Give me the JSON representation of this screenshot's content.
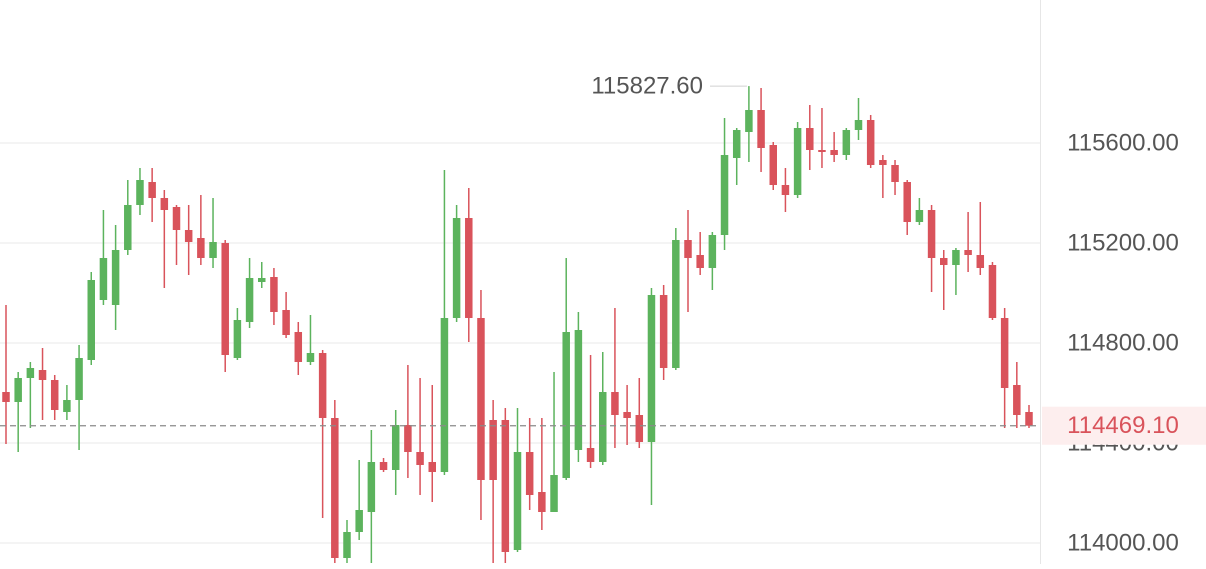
{
  "chart_data": {
    "type": "candlestick",
    "up_color": "#5cb35d",
    "down_color": "#d9535b",
    "ylim": [
      113916,
      116172
    ],
    "yticks": [
      {
        "value": 114000,
        "label": "114000.00"
      },
      {
        "value": 114400,
        "label": "114400.00"
      },
      {
        "value": 114800,
        "label": "114800.00"
      },
      {
        "value": 115200,
        "label": "115200.00"
      },
      {
        "value": 115600,
        "label": "115600.00"
      }
    ],
    "grid": true,
    "max_marker": {
      "value": 115827.6,
      "label": "115827.60"
    },
    "current_price": {
      "value": 114469.1,
      "label": "114469.10"
    },
    "open": [
      114604,
      114564,
      114660,
      114692,
      114652,
      114524,
      114572,
      114732,
      114972,
      114952,
      115172,
      115352,
      115444,
      115380,
      115344,
      115252,
      115220,
      115140,
      115200,
      114740,
      114884,
      115044,
      115064,
      114932,
      114844,
      114724,
      114760,
      114500,
      113940,
      114044,
      114124,
      114324,
      114292,
      114472,
      114364,
      114324,
      114284,
      114900,
      115300,
      114900,
      114492,
      114492,
      113972,
      114364,
      114204,
      114124,
      114260,
      114372,
      114380,
      114324,
      114604,
      114524,
      114512,
      114404,
      114992,
      114700,
      115212,
      115152,
      115100,
      115232,
      115540,
      115644,
      115732,
      115592,
      115432,
      115392,
      115660,
      115572,
      115572,
      115552,
      115652,
      115692,
      115532,
      115512,
      115444,
      115284,
      115332,
      115140,
      115112,
      115172,
      115152,
      115112,
      114900,
      114632,
      114524
    ],
    "high": [
      114952,
      114684,
      114724,
      114780,
      114672,
      114632,
      114792,
      115084,
      115332,
      115272,
      115452,
      115500,
      115500,
      115412,
      115352,
      115352,
      115392,
      115380,
      115212,
      114940,
      115140,
      115124,
      115100,
      115004,
      114884,
      114912,
      114772,
      114572,
      114092,
      114332,
      114452,
      114340,
      114532,
      114712,
      114660,
      114632,
      115492,
      115352,
      115420,
      115012,
      114572,
      114540,
      114540,
      114500,
      114500,
      114684,
      115140,
      114924,
      114752,
      114764,
      114940,
      114632,
      114660,
      115020,
      115032,
      115260,
      115332,
      115244,
      115244,
      115700,
      115660,
      115827.6,
      115820,
      115604,
      115500,
      115684,
      115752,
      115740,
      115644,
      115660,
      115780,
      115712,
      115552,
      115532,
      115452,
      115380,
      115352,
      115172,
      115180,
      115324,
      115364,
      115124,
      114940,
      114724,
      114552
    ],
    "low": [
      114396,
      114364,
      114460,
      114492,
      114492,
      114492,
      114372,
      114712,
      114952,
      114852,
      115152,
      115312,
      115284,
      115020,
      115112,
      115072,
      115112,
      115100,
      114684,
      114732,
      114860,
      115020,
      114872,
      114820,
      114672,
      114712,
      114100,
      113920,
      113920,
      114012,
      113920,
      114284,
      114192,
      114260,
      114192,
      114164,
      114272,
      114884,
      114804,
      114092,
      113920,
      113920,
      113964,
      114132,
      114052,
      114124,
      114252,
      114324,
      114300,
      114312,
      114380,
      114392,
      114380,
      114152,
      114652,
      114692,
      114924,
      115072,
      115012,
      115172,
      115432,
      115524,
      115484,
      115412,
      115324,
      115380,
      115492,
      115500,
      115524,
      115532,
      115612,
      115500,
      115380,
      115392,
      115232,
      115272,
      115004,
      114932,
      114992,
      115084,
      115072,
      114892,
      114460,
      114460,
      114460
    ],
    "close": [
      114564,
      114660,
      114700,
      114652,
      114532,
      114572,
      114740,
      115052,
      115140,
      115172,
      115352,
      115452,
      115380,
      115332,
      115252,
      115204,
      115140,
      115204,
      114752,
      114892,
      115060,
      115060,
      114924,
      114832,
      114724,
      114760,
      114500,
      113940,
      114044,
      114132,
      114324,
      114292,
      114472,
      114364,
      114312,
      114284,
      114900,
      115300,
      114900,
      114252,
      114252,
      113964,
      114364,
      114192,
      114124,
      114272,
      114844,
      114852,
      114324,
      114604,
      114512,
      114500,
      114404,
      114992,
      114700,
      115212,
      115140,
      115100,
      115232,
      115552,
      115652,
      115732,
      115580,
      115432,
      115392,
      115660,
      115572,
      115564,
      115552,
      115652,
      115692,
      115512,
      115512,
      115444,
      115284,
      115332,
      115140,
      115112,
      115172,
      115152,
      115100,
      114900,
      114620,
      114512,
      114469.1
    ]
  }
}
